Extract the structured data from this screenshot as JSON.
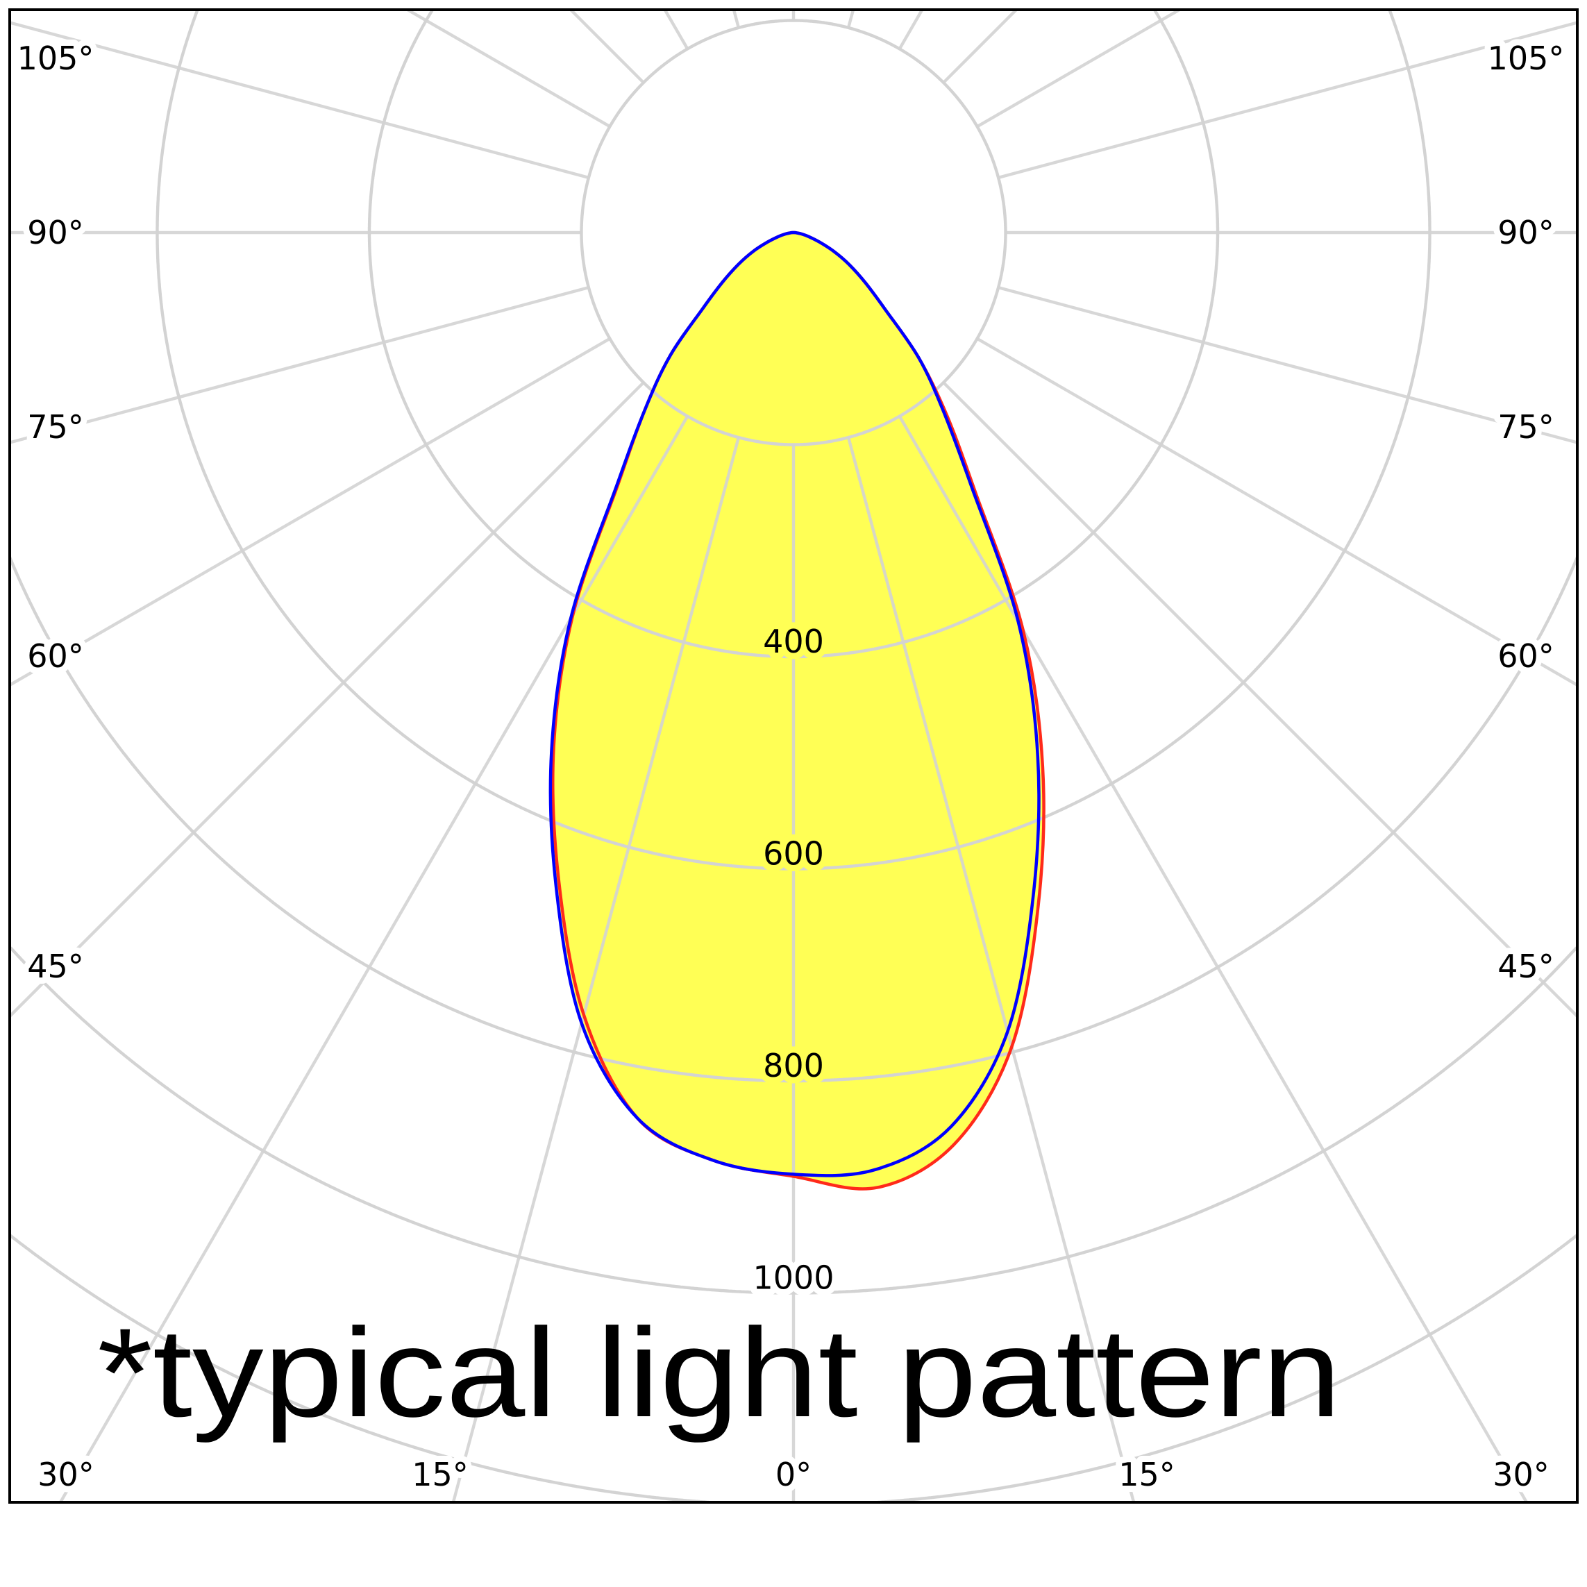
{
  "chart_data": {
    "type": "polar",
    "angle_unit": "degree",
    "gamma": [
      -90,
      -85,
      -80,
      -75,
      -70,
      -65,
      -60,
      -55,
      -50,
      -45,
      -40,
      -35,
      -30,
      -25,
      -20,
      -15,
      -10,
      -5,
      0,
      5,
      10,
      15,
      20,
      25,
      30,
      35,
      40,
      45,
      50,
      55,
      60,
      65,
      70,
      75,
      80,
      85,
      90
    ],
    "series": [
      {
        "color": "#ff2a1a",
        "values": [
          0,
          3,
          8,
          15,
          26,
          42,
          60,
          82,
          112,
          165,
          218,
          287,
          416,
          535,
          648,
          764,
          848,
          878,
          890,
          904,
          873,
          795,
          675,
          556,
          433,
          299,
          225,
          167,
          113,
          83,
          61,
          42,
          26,
          15,
          8,
          3,
          0
        ]
      },
      {
        "color": "#0000ff",
        "values": [
          0,
          3,
          8,
          15,
          26,
          42,
          60,
          82,
          112,
          165,
          218,
          290,
          420,
          540,
          655,
          772,
          848,
          878,
          888,
          887,
          856,
          780,
          662,
          545,
          424,
          293,
          220,
          167,
          113,
          83,
          61,
          42,
          26,
          15,
          8,
          3,
          0
        ]
      }
    ],
    "fill_color": "#ffff55",
    "grid": true,
    "grid_color": "#d3d3d3",
    "radial_range": [
      0,
      1000
    ],
    "radial_gridlines": [
      200,
      400,
      600,
      800,
      1000,
      1200
    ],
    "radial_tick_labels": [
      {
        "value": 400,
        "text": "400"
      },
      {
        "value": 600,
        "text": "600"
      },
      {
        "value": 800,
        "text": "800"
      },
      {
        "value": 1000,
        "text": "1000"
      }
    ],
    "angle_gridline_step": 15,
    "angle_tick_labels": [
      {
        "angle": -105,
        "text": "105°"
      },
      {
        "angle": -90,
        "text": "90°"
      },
      {
        "angle": -75,
        "text": "75°"
      },
      {
        "angle": -60,
        "text": "60°"
      },
      {
        "angle": -45,
        "text": "45°"
      },
      {
        "angle": -30,
        "text": "30°"
      },
      {
        "angle": -15,
        "text": "15°"
      },
      {
        "angle": 0,
        "text": "0°"
      },
      {
        "angle": 15,
        "text": "15°"
      },
      {
        "angle": 30,
        "text": "30°"
      },
      {
        "angle": 45,
        "text": "45°"
      },
      {
        "angle": 60,
        "text": "60°"
      },
      {
        "angle": 75,
        "text": "75°"
      },
      {
        "angle": 90,
        "text": "90°"
      },
      {
        "angle": 105,
        "text": "105°"
      }
    ],
    "annotation": "*typical light pattern"
  }
}
